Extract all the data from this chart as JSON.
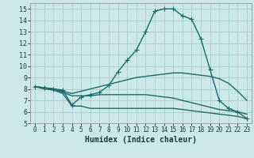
{
  "bg_color": "#cce8e8",
  "grid_color": "#aacfcf",
  "line_color": "#1a6b6b",
  "marker": "+",
  "markersize": 4,
  "linewidth": 1.0,
  "xlabel": "Humidex (Indice chaleur)",
  "xlabel_fontsize": 7,
  "tick_fontsize": 5.5,
  "ylim": [
    5,
    15.5
  ],
  "xlim": [
    -0.5,
    23.5
  ],
  "yticks": [
    5,
    6,
    7,
    8,
    9,
    10,
    11,
    12,
    13,
    14,
    15
  ],
  "xticks": [
    0,
    1,
    2,
    3,
    4,
    5,
    6,
    7,
    8,
    9,
    10,
    11,
    12,
    13,
    14,
    15,
    16,
    17,
    18,
    19,
    20,
    21,
    22,
    23
  ],
  "curve1_x": [
    0,
    1,
    2,
    3,
    4,
    5,
    6,
    7,
    8,
    9,
    10,
    11,
    12,
    13,
    14,
    15,
    16,
    17,
    18,
    19,
    20,
    21,
    22,
    23
  ],
  "curve1_y": [
    8.2,
    8.1,
    8.0,
    7.9,
    6.6,
    7.3,
    7.5,
    7.7,
    8.3,
    9.5,
    10.5,
    11.4,
    13.0,
    14.8,
    15.0,
    15.0,
    14.4,
    14.1,
    12.4,
    9.7,
    7.0,
    6.3,
    6.0,
    5.4
  ],
  "curve2_x": [
    0,
    1,
    2,
    3,
    4,
    5,
    6,
    7,
    8,
    9,
    10,
    11,
    12,
    13,
    14,
    15,
    16,
    17,
    18,
    19,
    20,
    21,
    22,
    23
  ],
  "curve2_y": [
    8.2,
    8.1,
    8.0,
    7.8,
    7.6,
    7.8,
    8.0,
    8.2,
    8.4,
    8.6,
    8.8,
    9.0,
    9.1,
    9.2,
    9.3,
    9.4,
    9.4,
    9.3,
    9.2,
    9.1,
    8.9,
    8.5,
    7.8,
    7.0
  ],
  "curve3_x": [
    0,
    1,
    2,
    3,
    4,
    5,
    6,
    7,
    8,
    9,
    10,
    11,
    12,
    13,
    14,
    15,
    16,
    17,
    18,
    19,
    20,
    21,
    22,
    23
  ],
  "curve3_y": [
    8.2,
    8.1,
    8.0,
    7.7,
    7.4,
    7.4,
    7.4,
    7.5,
    7.5,
    7.5,
    7.5,
    7.5,
    7.5,
    7.4,
    7.3,
    7.2,
    7.0,
    6.8,
    6.6,
    6.4,
    6.2,
    6.1,
    6.0,
    5.8
  ],
  "curve4_x": [
    0,
    1,
    2,
    3,
    4,
    5,
    6,
    7,
    8,
    9,
    10,
    11,
    12,
    13,
    14,
    15,
    16,
    17,
    18,
    19,
    20,
    21,
    22,
    23
  ],
  "curve4_y": [
    8.2,
    8.0,
    7.9,
    7.6,
    6.5,
    6.5,
    6.3,
    6.3,
    6.3,
    6.3,
    6.3,
    6.3,
    6.3,
    6.3,
    6.3,
    6.3,
    6.2,
    6.1,
    6.0,
    5.9,
    5.8,
    5.7,
    5.6,
    5.4
  ]
}
